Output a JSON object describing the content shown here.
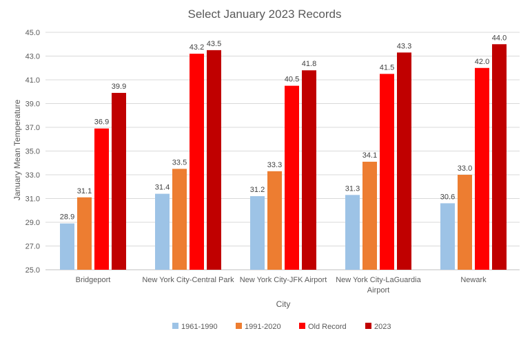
{
  "chart_data": {
    "type": "bar",
    "title": "Select January 2023 Records",
    "xlabel": "City",
    "ylabel": "January Mean Temperature",
    "ylim": [
      25.0,
      45.0
    ],
    "yticks": [
      "25.0",
      "27.0",
      "29.0",
      "31.0",
      "33.0",
      "35.0",
      "37.0",
      "39.0",
      "41.0",
      "43.0",
      "45.0"
    ],
    "grid": true,
    "legend_position": "bottom",
    "categories": [
      [
        "Bridgeport"
      ],
      [
        "New York City-Central Park"
      ],
      [
        "New York City-JFK Airport"
      ],
      [
        "New York City-LaGuardia",
        "Airport"
      ],
      [
        "Newark"
      ]
    ],
    "series": [
      {
        "name": "1961-1990",
        "color": "#9dc3e6",
        "values": [
          28.9,
          31.4,
          31.2,
          31.3,
          30.6
        ]
      },
      {
        "name": "1991-2020",
        "color": "#ed7d31",
        "values": [
          31.1,
          33.5,
          33.3,
          34.1,
          33.0
        ]
      },
      {
        "name": "Old Record",
        "color": "#ff0000",
        "values": [
          36.9,
          43.2,
          40.5,
          41.5,
          42.0
        ]
      },
      {
        "name": "2023",
        "color": "#c00000",
        "values": [
          39.9,
          43.5,
          41.8,
          43.3,
          44.0
        ]
      }
    ]
  }
}
